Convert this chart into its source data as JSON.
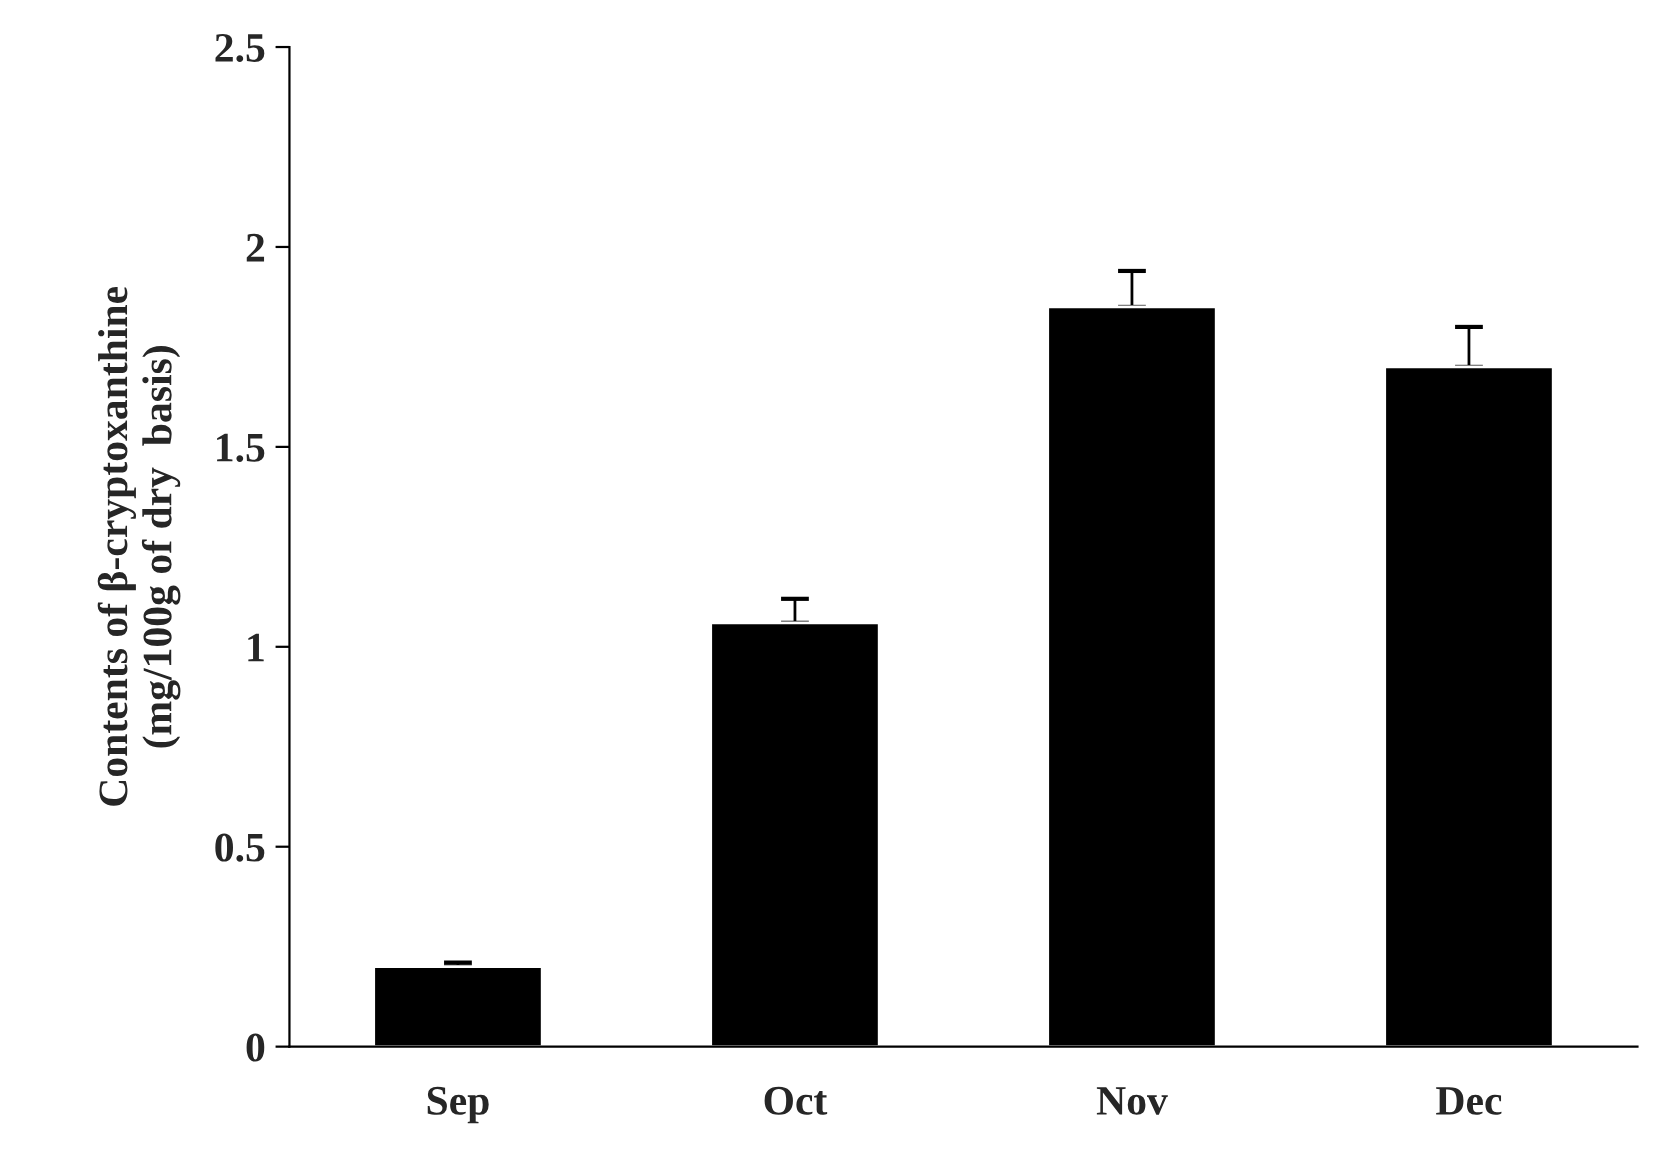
{
  "chart_data": {
    "type": "bar",
    "ylabel": "Contents of β-cryptoxanthine\n(mg/100g of dry  basis)",
    "categories": [
      "Sep",
      "Oct",
      "Nov",
      "Dec"
    ],
    "values": [
      0.2,
      1.06,
      1.85,
      1.7
    ],
    "errors": [
      [
        0.2,
        0.21
      ],
      [
        1.06,
        1.12
      ],
      [
        1.85,
        1.94
      ],
      [
        1.7,
        1.8
      ]
    ],
    "color": "#000000",
    "ylim": [
      0,
      2.5
    ],
    "yticks": [
      0,
      0.5,
      1,
      1.5,
      2,
      2.5
    ],
    "grid": false,
    "legend": false
  }
}
